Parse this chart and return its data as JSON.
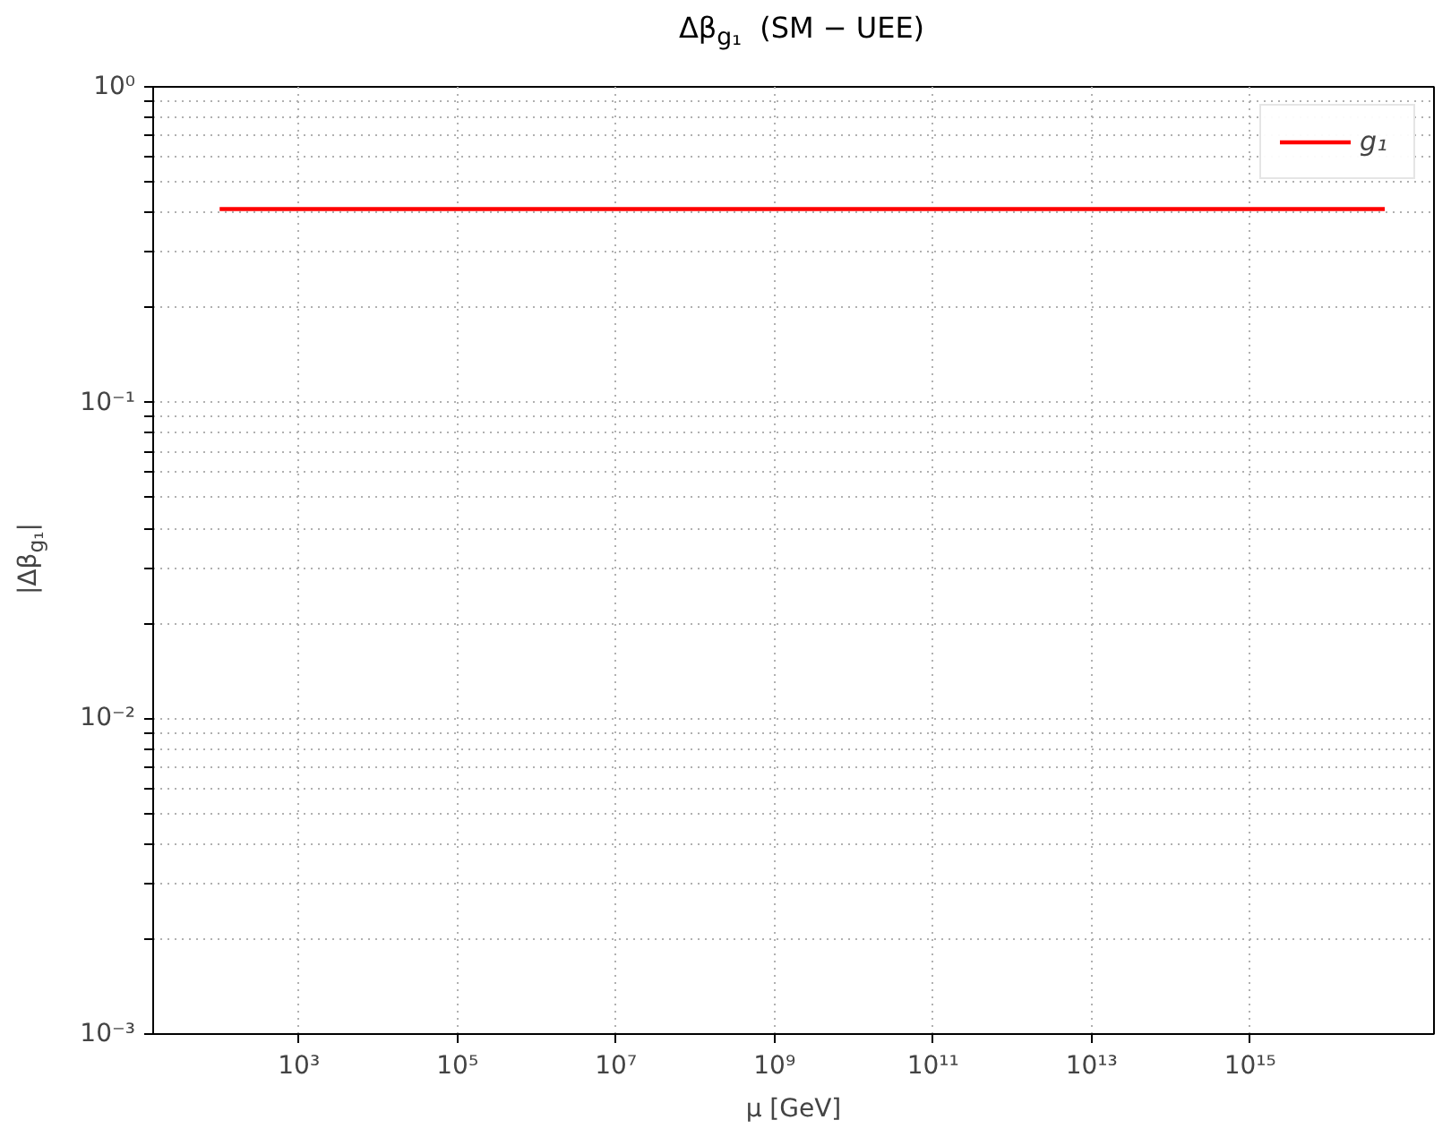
{
  "chart_data": {
    "type": "line",
    "title": "Δβ$_{g₁}$  (SM − UEE)",
    "xlabel": "μ [GeV]",
    "ylabel": "|Δβ$_{g₁}$|",
    "x": [
      100,
      50000000000000000
    ],
    "series": [
      {
        "name": "g₁",
        "color": "#ff0000",
        "values": [
          0.41,
          0.41
        ]
      }
    ],
    "log": "xy",
    "xlim": [
      14.5,
      209000000000000000
    ],
    "ylim": [
      0.001,
      1
    ],
    "xticks": [
      {
        "value": 1000,
        "label": "10³"
      },
      {
        "value": 100000,
        "label": "10⁵"
      },
      {
        "value": 10000000,
        "label": "10⁷"
      },
      {
        "value": 1000000000,
        "label": "10⁹"
      },
      {
        "value": 100000000000,
        "label": "10¹¹"
      },
      {
        "value": 10000000000000,
        "label": "10¹³"
      },
      {
        "value": 1000000000000000,
        "label": "10¹⁵"
      }
    ],
    "yticks": [
      {
        "value": 0.001,
        "label": "10⁻³"
      },
      {
        "value": 0.002,
        "label": null
      },
      {
        "value": 0.003,
        "label": null
      },
      {
        "value": 0.004,
        "label": null
      },
      {
        "value": 0.005,
        "label": null
      },
      {
        "value": 0.006,
        "label": null
      },
      {
        "value": 0.007,
        "label": null
      },
      {
        "value": 0.008,
        "label": null
      },
      {
        "value": 0.009,
        "label": null
      },
      {
        "value": 0.01,
        "label": "10⁻²"
      },
      {
        "value": 0.02,
        "label": null
      },
      {
        "value": 0.03,
        "label": null
      },
      {
        "value": 0.04,
        "label": null
      },
      {
        "value": 0.05,
        "label": null
      },
      {
        "value": 0.06,
        "label": null
      },
      {
        "value": 0.07,
        "label": null
      },
      {
        "value": 0.08,
        "label": null
      },
      {
        "value": 0.09,
        "label": null
      },
      {
        "value": 0.1,
        "label": "10⁻¹"
      },
      {
        "value": 0.2,
        "label": null
      },
      {
        "value": 0.3,
        "label": null
      },
      {
        "value": 0.4,
        "label": null
      },
      {
        "value": 0.5,
        "label": null
      },
      {
        "value": 0.6,
        "label": null
      },
      {
        "value": 0.7,
        "label": null
      },
      {
        "value": 0.8,
        "label": null
      },
      {
        "value": 0.9,
        "label": null
      },
      {
        "value": 1,
        "label": "10⁰"
      }
    ],
    "grid": true,
    "legend": "top right",
    "marker": "none",
    "line_style": "solid"
  }
}
